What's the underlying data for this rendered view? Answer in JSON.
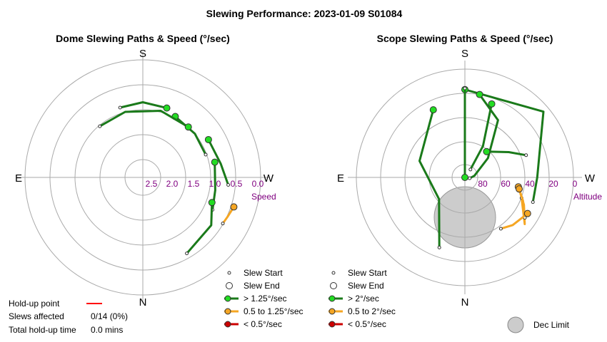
{
  "page_title": "Slewing Performance: 2023-01-09 S01084",
  "chart_data": [
    {
      "type": "polar",
      "title": "Dome Slewing Paths & Speed (°/sec)",
      "cardinals": {
        "top": "S",
        "bottom": "N",
        "left": "E",
        "right": "W"
      },
      "radial_axis": {
        "label": "Speed",
        "ticks": [
          "2.5",
          "2.0",
          "1.5",
          "1.0",
          "0.5",
          "0.0"
        ]
      },
      "grid": true,
      "series": [
        {
          "name": "> 1.25°/sec",
          "color": "#1a7a1a",
          "paths": [
            {
              "points": [
                [
                  -71,
                  2.0
                ],
                [
                  -90,
                  1.92
                ],
                [
                  -108,
                  2.0
                ]
              ]
            },
            {
              "points": [
                [
                  -62,
                  2.2
                ],
                [
                  -40,
                  2.25
                ],
                [
                  -20,
                  2.3
                ]
              ]
            },
            {
              "points": [
                [
                  -48,
                  2.25
                ],
                [
                  -75,
                  2.2
                ],
                [
                  -105,
                  2.25
                ],
                [
                  -130,
                  2.3
                ]
              ]
            },
            {
              "points": [
                [
                  -30,
                  1.9
                ],
                [
                  -10,
                  1.75
                ],
                [
                  5,
                  1.45
                ]
              ]
            },
            {
              "points": [
                [
                  -12,
                  2.0
                ],
                [
                  10,
                  2.0
                ],
                [
                  25,
                  1.85
                ]
              ]
            },
            {
              "points": [
                [
                  20,
                  2.0
                ],
                [
                  35,
                  1.55
                ],
                [
                  60,
                  1.35
                ]
              ]
            }
          ]
        },
        {
          "name": "0.5 to 1.25°/sec",
          "color": "#f5a623",
          "paths": [
            {
              "points": [
                [
                  18,
                  1.0
                ],
                [
                  25,
                  1.1
                ],
                [
                  30,
                  1.15
                ]
              ]
            }
          ]
        }
      ]
    },
    {
      "type": "polar",
      "title": "Scope Slewing Paths & Speed (°/sec)",
      "cardinals": {
        "top": "S",
        "bottom": "N",
        "left": "E",
        "right": "W"
      },
      "radial_axis": {
        "label": "Altitude",
        "ticks": [
          "80",
          "60",
          "40",
          "20",
          "0"
        ]
      },
      "dec_limit": {
        "label": "Dec Limit"
      },
      "grid": true,
      "series": [
        {
          "name": "> 2°/sec",
          "color": "#1a7a1a",
          "paths": [
            {
              "points": [
                [
                  -90,
                  17
                ],
                [
                  -40,
                  5
                ],
                [
                  0,
                  30
                ],
                [
                  20,
                  30
                ]
              ]
            },
            {
              "points": [
                [
                  -70,
                  25
                ],
                [
                  -60,
                  60
                ],
                [
                  -55,
                  82
                ]
              ]
            },
            {
              "points": [
                [
                  -90,
                  90
                ],
                [
                  -90,
                  40
                ],
                [
                  -90,
                  16
                ]
              ]
            },
            {
              "points": [
                [
                  -115,
                  28
                ],
                [
                  -160,
                  50
                ],
                [
                  140,
                  62
                ],
                [
                  110,
                  28
                ]
              ]
            },
            {
              "points": [
                [
                  -80,
                  20
                ],
                [
                  -60,
                  35
                ],
                [
                  -40,
                  65
                ],
                [
                  -10,
                  82
                ],
                [
                  10,
                  86
                ]
              ]
            },
            {
              "points": [
                [
                  -50,
                  62
                ],
                [
                  -30,
                  48
                ],
                [
                  -20,
                  36
                ]
              ]
            }
          ]
        },
        {
          "name": "0.5 to 2°/sec",
          "color": "#f5a623",
          "paths": [
            {
              "points": [
                [
                  10,
                  45
                ],
                [
                  25,
                  36
                ],
                [
                  38,
                  27
                ],
                [
                  20,
                  40
                ]
              ]
            },
            {
              "points": [
                [
                  12,
                  44
                ],
                [
                  22,
                  38
                ],
                [
                  34,
                  30
                ]
              ]
            },
            {
              "points": [
                [
                  30,
                  30
                ],
                [
                  45,
                  34
                ],
                [
                  55,
                  38
                ]
              ]
            }
          ]
        }
      ]
    }
  ],
  "legend_left": {
    "items": [
      {
        "label": "Slew Start",
        "symbol": "small-circle"
      },
      {
        "label": "Slew End",
        "symbol": "open-circle"
      },
      {
        "label": "> 1.25°/sec",
        "symbol": "line-marker",
        "color": "#1a7a1a",
        "fill": "#22dd22"
      },
      {
        "label": "0.5 to 1.25°/sec",
        "symbol": "line-marker",
        "color": "#f5a623",
        "fill": "#f5a623"
      },
      {
        "label": "< 0.5°/sec",
        "symbol": "line-marker",
        "color": "#cc0000",
        "fill": "#cc0000"
      }
    ]
  },
  "legend_right": {
    "items": [
      {
        "label": "Slew Start",
        "symbol": "small-circle"
      },
      {
        "label": "Slew End",
        "symbol": "open-circle"
      },
      {
        "label": "> 2°/sec",
        "symbol": "line-marker",
        "color": "#1a7a1a",
        "fill": "#22dd22"
      },
      {
        "label": "0.5 to 2°/sec",
        "symbol": "line-marker",
        "color": "#f5a623",
        "fill": "#f5a623"
      },
      {
        "label": "< 0.5°/sec",
        "symbol": "line-marker",
        "color": "#cc0000",
        "fill": "#cc0000"
      }
    ],
    "dec_limit_label": "Dec Limit"
  },
  "holdup": {
    "point_label": "Hold-up point",
    "point_color": "#ff0000",
    "slews_label": "Slews affected",
    "slews_value": "0/14 (0%)",
    "total_label": "Total hold-up time",
    "total_value": "0.0 mins"
  }
}
